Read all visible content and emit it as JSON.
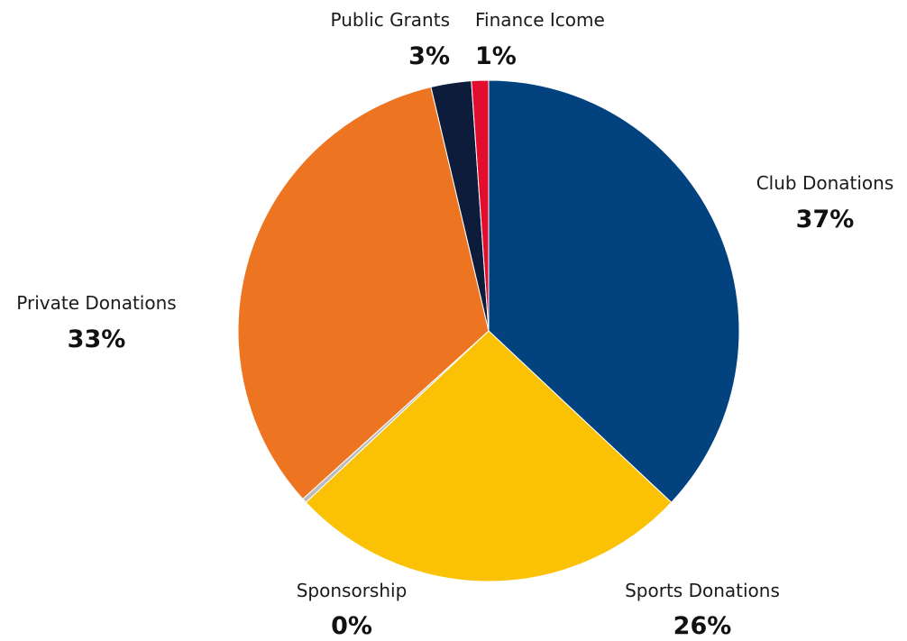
{
  "chart_data": {
    "type": "pie",
    "title": "",
    "slices": [
      {
        "name": "Club Donations",
        "label_value": "37%",
        "value": 37.0,
        "color": "#02427f"
      },
      {
        "name": "Sports Donations",
        "label_value": "26%",
        "value": 26.0,
        "color": "#fbc205"
      },
      {
        "name": "Sponsorship",
        "label_value": "0%",
        "value": 0.3,
        "color": "#bcbcbc"
      },
      {
        "name": "Private Donations",
        "label_value": "33%",
        "value": 33.0,
        "color": "#ed7521"
      },
      {
        "name": "Public Grants",
        "label_value": "3%",
        "value": 2.6,
        "color": "#0d1c3b"
      },
      {
        "name": "Finance Icome",
        "label_value": "1%",
        "value": 1.1,
        "color": "#e30d2e"
      }
    ]
  }
}
